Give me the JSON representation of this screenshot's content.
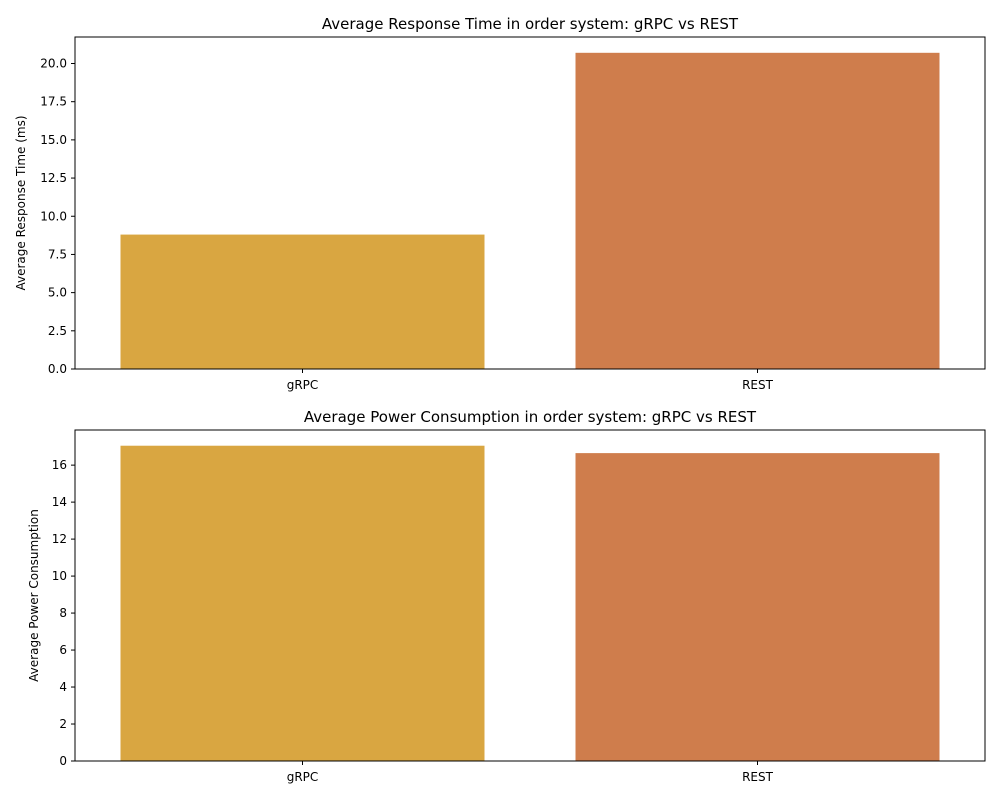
{
  "chart_data": [
    {
      "type": "bar",
      "title": "Average Response Time in order system: gRPC vs REST",
      "xlabel": "",
      "ylabel": "Average Response Time (ms)",
      "categories": [
        "gRPC",
        "REST"
      ],
      "values": [
        8.8,
        20.7
      ],
      "ylim": [
        0,
        21.735
      ],
      "yticks": [
        0.0,
        2.5,
        5.0,
        7.5,
        10.0,
        12.5,
        15.0,
        17.5,
        20.0
      ],
      "ytick_labels": [
        "0.0",
        "2.5",
        "5.0",
        "7.5",
        "10.0",
        "12.5",
        "15.0",
        "17.5",
        "20.0"
      ],
      "colors": [
        "#d9a641",
        "#cf7d4c"
      ],
      "grid": false,
      "legend": "none"
    },
    {
      "type": "bar",
      "title": "Average Power Consumption in order system: gRPC vs REST",
      "xlabel": "",
      "ylabel": "Average Power Consumption",
      "categories": [
        "gRPC",
        "REST"
      ],
      "values": [
        17.05,
        16.65
      ],
      "ylim": [
        0,
        17.9
      ],
      "yticks": [
        0,
        2,
        4,
        6,
        8,
        10,
        12,
        14,
        16
      ],
      "ytick_labels": [
        "0",
        "2",
        "4",
        "6",
        "8",
        "10",
        "12",
        "14",
        "16"
      ],
      "colors": [
        "#d9a641",
        "#cf7d4c"
      ],
      "grid": false,
      "legend": "none"
    }
  ]
}
